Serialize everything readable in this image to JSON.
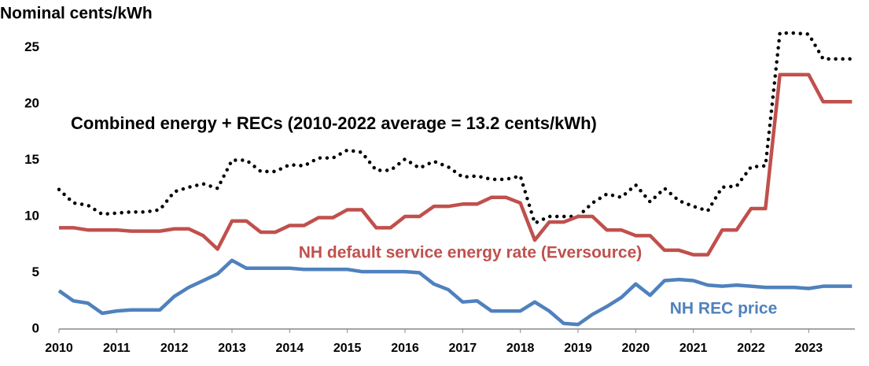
{
  "chart_data": {
    "type": "line",
    "ylabel": "Nominal cents/kWh",
    "x": [
      2010,
      2010.25,
      2010.5,
      2010.75,
      2011,
      2011.25,
      2011.5,
      2011.75,
      2012,
      2012.25,
      2012.5,
      2012.75,
      2013,
      2013.25,
      2013.5,
      2013.75,
      2014,
      2014.25,
      2014.5,
      2014.75,
      2015,
      2015.25,
      2015.5,
      2015.75,
      2016,
      2016.25,
      2016.5,
      2016.75,
      2017,
      2017.25,
      2017.5,
      2017.75,
      2018,
      2018.25,
      2018.5,
      2018.75,
      2019,
      2019.25,
      2019.5,
      2019.75,
      2020,
      2020.25,
      2020.5,
      2020.75,
      2021,
      2021.25,
      2021.5,
      2021.75,
      2022,
      2022.25,
      2022.5,
      2022.75,
      2023,
      2023.25,
      2023.5,
      2023.75
    ],
    "series": [
      {
        "name": "Combined energy + RECs (2010-2022 average = 13.2 cents/kWh)",
        "color": "#000000",
        "dash": "dotted",
        "values": [
          12.4,
          11.2,
          11.0,
          10.2,
          10.3,
          10.4,
          10.4,
          10.6,
          12.2,
          12.6,
          12.9,
          12.5,
          15.0,
          15.0,
          14.0,
          14.0,
          14.6,
          14.5,
          15.2,
          15.2,
          15.9,
          15.7,
          14.1,
          14.1,
          15.1,
          14.3,
          14.9,
          14.4,
          13.5,
          13.6,
          13.3,
          13.3,
          13.6,
          9.4,
          10.0,
          10.0,
          10.0,
          11.2,
          12.0,
          11.7,
          12.8,
          11.3,
          12.5,
          11.4,
          10.9,
          10.5,
          12.6,
          12.7,
          14.4,
          14.5,
          26.3,
          26.3,
          26.2,
          24.0,
          24.0,
          24.0
        ]
      },
      {
        "name": "NH default service energy rate (Eversource)",
        "color": "#c0504d",
        "dash": "solid",
        "values": [
          9.0,
          9.0,
          8.8,
          8.8,
          8.8,
          8.7,
          8.7,
          8.7,
          8.9,
          8.9,
          8.3,
          7.1,
          9.6,
          9.6,
          8.6,
          8.6,
          9.2,
          9.2,
          9.9,
          9.9,
          10.6,
          10.6,
          9.0,
          9.0,
          10.0,
          10.0,
          10.9,
          10.9,
          11.1,
          11.1,
          11.7,
          11.7,
          11.2,
          7.9,
          9.5,
          9.5,
          10.0,
          10.0,
          8.8,
          8.8,
          8.3,
          8.3,
          7.0,
          7.0,
          6.6,
          6.6,
          8.8,
          8.8,
          10.7,
          10.7,
          22.6,
          22.6,
          22.6,
          20.2,
          20.2,
          20.2
        ]
      },
      {
        "name": "NH REC price",
        "color": "#4f81bd",
        "dash": "solid",
        "values": [
          3.4,
          2.5,
          2.3,
          1.4,
          1.6,
          1.7,
          1.7,
          1.7,
          2.9,
          3.7,
          4.3,
          4.9,
          6.1,
          5.4,
          5.4,
          5.4,
          5.4,
          5.3,
          5.3,
          5.3,
          5.3,
          5.1,
          5.1,
          5.1,
          5.1,
          5.0,
          4.0,
          3.5,
          2.4,
          2.5,
          1.6,
          1.6,
          1.6,
          2.4,
          1.6,
          0.5,
          0.4,
          1.3,
          2.0,
          2.8,
          4.0,
          3.0,
          4.3,
          4.4,
          4.3,
          3.9,
          3.8,
          3.9,
          3.8,
          3.7,
          3.7,
          3.7,
          3.6,
          3.8,
          3.8,
          3.8
        ]
      }
    ],
    "xlim": [
      2010,
      2023.8
    ],
    "xticks": [
      2010,
      2011,
      2012,
      2013,
      2014,
      2015,
      2016,
      2017,
      2018,
      2019,
      2020,
      2021,
      2022,
      2023
    ],
    "ylim": [
      0,
      27
    ],
    "yticks": [
      0,
      5,
      10,
      15,
      20,
      25
    ],
    "grid": false
  }
}
